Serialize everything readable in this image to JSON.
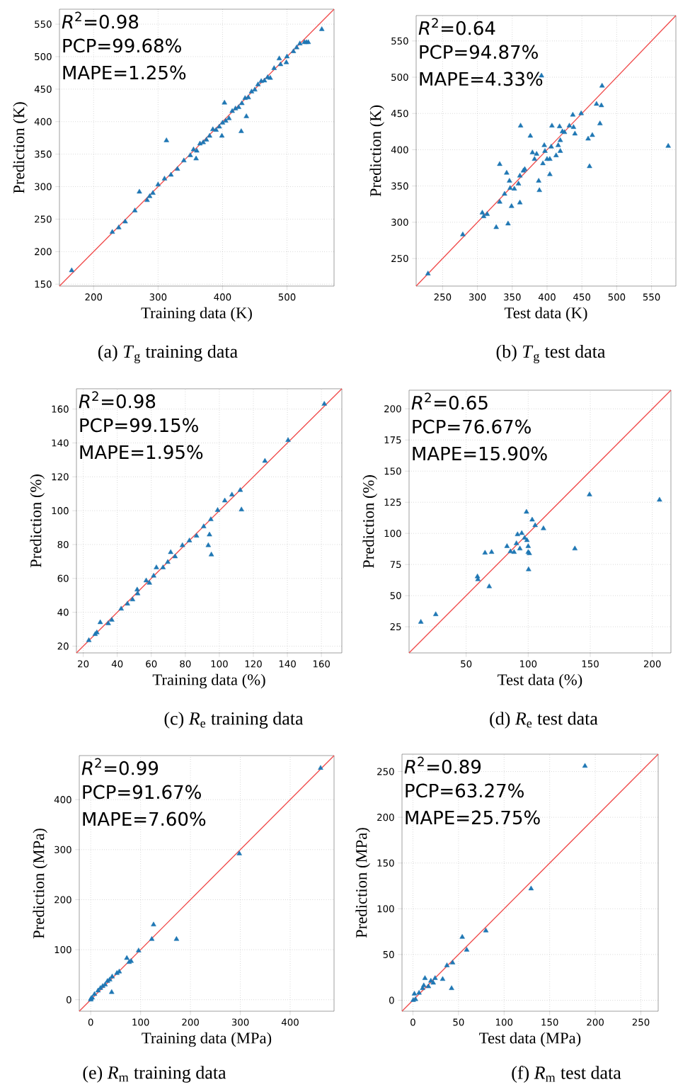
{
  "chart_data": [
    {
      "type": "scatter",
      "xlabel": "Training data (K)",
      "ylabel": "Prediction (K)",
      "xlim": [
        147,
        573
      ],
      "ylim": [
        147,
        573
      ],
      "xticks": [
        200,
        300,
        400,
        500
      ],
      "yticks": [
        150,
        200,
        250,
        300,
        350,
        400,
        450,
        500,
        550
      ],
      "grid": true,
      "marker": "triangle",
      "annotations": [
        "*R*$^{2}$=0.98",
        "PCP=99.68%",
        "MAPE=1.25%",
        "(a) *T*$_{g}$ training data"
      ],
      "series": [
        {
          "color": "#1f77b4",
          "x": [
            166,
            229,
            239,
            249,
            264,
            271,
            283,
            287,
            292,
            300,
            310,
            313,
            320,
            330,
            340,
            350,
            355,
            359,
            360,
            365,
            370,
            375,
            380,
            385,
            390,
            395,
            399,
            400,
            403,
            405,
            410,
            415,
            420,
            425,
            429,
            430,
            435,
            437,
            440,
            445,
            450,
            455,
            460,
            465,
            470,
            474,
            480,
            488,
            490,
            499,
            500,
            510,
            515,
            520,
            527,
            530,
            533,
            554
          ],
          "values": [
            171,
            230,
            237,
            246,
            263,
            292,
            279,
            285,
            290,
            303,
            312,
            371,
            318,
            327,
            340,
            348,
            357,
            343,
            355,
            366,
            368,
            372,
            378,
            388,
            387,
            392,
            378,
            398,
            429,
            401,
            405,
            416,
            420,
            422,
            385,
            428,
            436,
            408,
            437,
            446,
            449,
            457,
            462,
            463,
            468,
            467,
            482,
            497,
            488,
            491,
            500,
            508,
            514,
            520,
            522,
            522,
            522,
            542
          ]
        },
        {
          "type": "line",
          "color": "#f04a4a",
          "x": [
            147,
            573
          ],
          "values": [
            147,
            573
          ],
          "marker": "none"
        }
      ]
    },
    {
      "type": "scatter",
      "xlabel": "Test data (K)",
      "ylabel": "Prediction (K)",
      "xlim": [
        212,
        585
      ],
      "ylim": [
        212,
        585
      ],
      "xticks": [
        250,
        300,
        350,
        400,
        450,
        500,
        550
      ],
      "yticks": [
        250,
        300,
        350,
        400,
        450,
        500,
        550
      ],
      "grid": true,
      "marker": "triangle",
      "annotations": [
        "*R*$^{2}$=0.64",
        "PCP=94.87%",
        "MAPE=4.33%",
        "(b) *T*$_{g}$ test data"
      ],
      "series": [
        {
          "color": "#1f77b4",
          "x": [
            229,
            279,
            307,
            309,
            314,
            327,
            344,
            332,
            349,
            361,
            332,
            342,
            346,
            347,
            339,
            353,
            359,
            361,
            366,
            368,
            362,
            376,
            379,
            385,
            388,
            389,
            382,
            394,
            392,
            396,
            397,
            400,
            404,
            404,
            406,
            407,
            413,
            416,
            419,
            419,
            418,
            422,
            425,
            432,
            437,
            438,
            440,
            449,
            459,
            465,
            461,
            471,
            478,
            476,
            479,
            574
          ],
          "values": [
            229,
            283,
            313,
            308,
            311,
            293,
            298,
            328,
            322,
            327,
            380,
            368,
            357,
            347,
            339,
            346,
            353,
            364,
            371,
            373,
            433,
            419,
            396,
            394,
            357,
            344,
            387,
            381,
            502,
            406,
            398,
            387,
            366,
            387,
            404,
            433,
            392,
            406,
            413,
            398,
            432,
            425,
            424,
            433,
            448,
            431,
            422,
            450,
            415,
            420,
            377,
            463,
            461,
            436,
            488,
            405
          ]
        },
        {
          "type": "line",
          "color": "#f04a4a",
          "x": [
            212,
            585
          ],
          "values": [
            212,
            585
          ],
          "marker": "none"
        }
      ]
    },
    {
      "type": "scatter",
      "xlabel": "Training data (%)",
      "ylabel": "Prediction (%)",
      "xlim": [
        16,
        172
      ],
      "ylim": [
        16,
        172
      ],
      "xticks": [
        20,
        40,
        60,
        80,
        100,
        120,
        140,
        160
      ],
      "yticks": [
        20,
        40,
        60,
        80,
        100,
        120,
        140,
        160
      ],
      "grid": true,
      "marker": "triangle",
      "annotations": [
        "*R*$^{2}$=0.98",
        "PCP=99.15%",
        "MAPE=1.95%",
        "(c) *R*$_{e}$ training data"
      ],
      "series": [
        {
          "color": "#1f77b4",
          "x": [
            23.3,
            27,
            28,
            30,
            34.7,
            36.8,
            42.3,
            46,
            49,
            51.7,
            52,
            57,
            58.9,
            61.4,
            63,
            66.9,
            69.7,
            71.4,
            74,
            78.3,
            82.4,
            86.6,
            90.8,
            95,
            99,
            103.2,
            107.4,
            112.3,
            113,
            94.2,
            93.5,
            95.3,
            126.8,
            140.4,
            161.7
          ],
          "values": [
            23.4,
            27,
            28,
            34,
            33.4,
            35.4,
            42,
            45,
            47.5,
            53.3,
            51,
            58.7,
            57.3,
            61.5,
            66.4,
            66.4,
            69.6,
            75.4,
            72.9,
            79.5,
            82.3,
            85.1,
            90.6,
            94.8,
            100.3,
            105.9,
            109.4,
            112.1,
            100.6,
            85.8,
            79.5,
            74,
            129.3,
            141.6,
            163
          ]
        },
        {
          "type": "line",
          "color": "#f04a4a",
          "x": [
            16,
            172
          ],
          "values": [
            16,
            172
          ],
          "marker": "none"
        }
      ]
    },
    {
      "type": "scatter",
      "xlabel": "Test data (%)",
      "ylabel": "Prediction (%)",
      "xlim": [
        4,
        215
      ],
      "ylim": [
        4,
        215
      ],
      "xticks": [
        50,
        100,
        150,
        200
      ],
      "yticks": [
        25,
        50,
        75,
        100,
        125,
        150,
        175,
        200
      ],
      "grid": true,
      "marker": "triangle",
      "annotations": [
        "*R*$^{2}$=0.65",
        "PCP=76.67%",
        "MAPE=15.90%",
        "(d) *R*$_{e}$ test data"
      ],
      "series": [
        {
          "color": "#1f77b4",
          "x": [
            13.5,
            25.5,
            59.1,
            59.5,
            68.6,
            65.2,
            70.5,
            82.9,
            85.7,
            88.6,
            90.5,
            93.3,
            91.4,
            94.8,
            97.1,
            99,
            100,
            100,
            100.9,
            100.3,
            98.6,
            103.2,
            105.6,
            112.3,
            137.6,
            149.4,
            205.8
          ],
          "values": [
            28.8,
            34.9,
            65.3,
            63,
            57.3,
            84.3,
            84.9,
            89.6,
            85.4,
            84.9,
            91.9,
            87.7,
            99.1,
            100.1,
            96.3,
            94.4,
            89.6,
            84.9,
            83.9,
            71,
            117.2,
            110.9,
            106.4,
            103.9,
            87.7,
            131.1,
            126.9
          ]
        },
        {
          "type": "line",
          "color": "#f04a4a",
          "x": [
            4,
            215
          ],
          "values": [
            4,
            215
          ],
          "marker": "none"
        }
      ]
    },
    {
      "type": "scatter",
      "xlabel": "Training data (MPa)",
      "ylabel": "Prediction (MPa)",
      "xlim": [
        -23,
        488
      ],
      "ylim": [
        -23,
        488
      ],
      "xticks": [
        0,
        100,
        200,
        300,
        400
      ],
      "yticks": [
        0,
        100,
        200,
        300,
        400
      ],
      "grid": true,
      "marker": "triangle",
      "annotations": [
        "*R*$^{2}$=0.99",
        "PCP=91.67%",
        "MAPE=7.60%",
        "(e) *R*$_{m}$ training data"
      ],
      "series": [
        {
          "color": "#1f77b4",
          "x": [
            0,
            0.5,
            2.8,
            7.6,
            14.7,
            19.4,
            24,
            28.8,
            33.6,
            38,
            42,
            43,
            52.5,
            57.2,
            72.4,
            77,
            80.9,
            96,
            122.5,
            126,
            172,
            298,
            461
          ],
          "values": [
            0,
            2,
            4,
            11,
            18,
            23,
            27,
            30,
            37,
            40,
            15,
            46,
            53,
            56,
            83,
            75,
            77,
            98,
            121,
            150,
            121,
            292,
            463
          ]
        },
        {
          "type": "line",
          "color": "#f04a4a",
          "x": [
            -23,
            488
          ],
          "values": [
            -23,
            488
          ],
          "marker": "none"
        }
      ]
    },
    {
      "type": "scatter",
      "xlabel": "Test data (MPa)",
      "ylabel": "Prediction (MPa)",
      "xlim": [
        -12,
        269
      ],
      "ylim": [
        -12,
        269
      ],
      "xticks": [
        0,
        50,
        100,
        150,
        200,
        250
      ],
      "yticks": [
        0,
        50,
        100,
        150,
        200,
        250
      ],
      "grid": true,
      "marker": "triangle",
      "annotations": [
        "*R*$^{2}$=0.89",
        "PCP=63.27%",
        "MAPE=25.75%",
        "(f) *R*$_{m}$ test data"
      ],
      "series": [
        {
          "color": "#1f77b4",
          "x": [
            0.3,
            1.6,
            2.8,
            6.7,
            10.6,
            11.9,
            13.2,
            17,
            19.7,
            22.3,
            24.3,
            32.6,
            37.3,
            42.4,
            43.5,
            54.1,
            59,
            80,
            129.6,
            188.7
          ],
          "values": [
            0,
            7,
            1,
            8,
            13,
            16,
            24,
            15,
            21,
            19,
            24,
            23,
            38,
            13,
            41,
            69,
            55,
            76,
            122,
            256
          ]
        },
        {
          "type": "line",
          "color": "#f04a4a",
          "x": [
            -12,
            269
          ],
          "values": [
            -12,
            269
          ],
          "marker": "none"
        }
      ]
    }
  ]
}
